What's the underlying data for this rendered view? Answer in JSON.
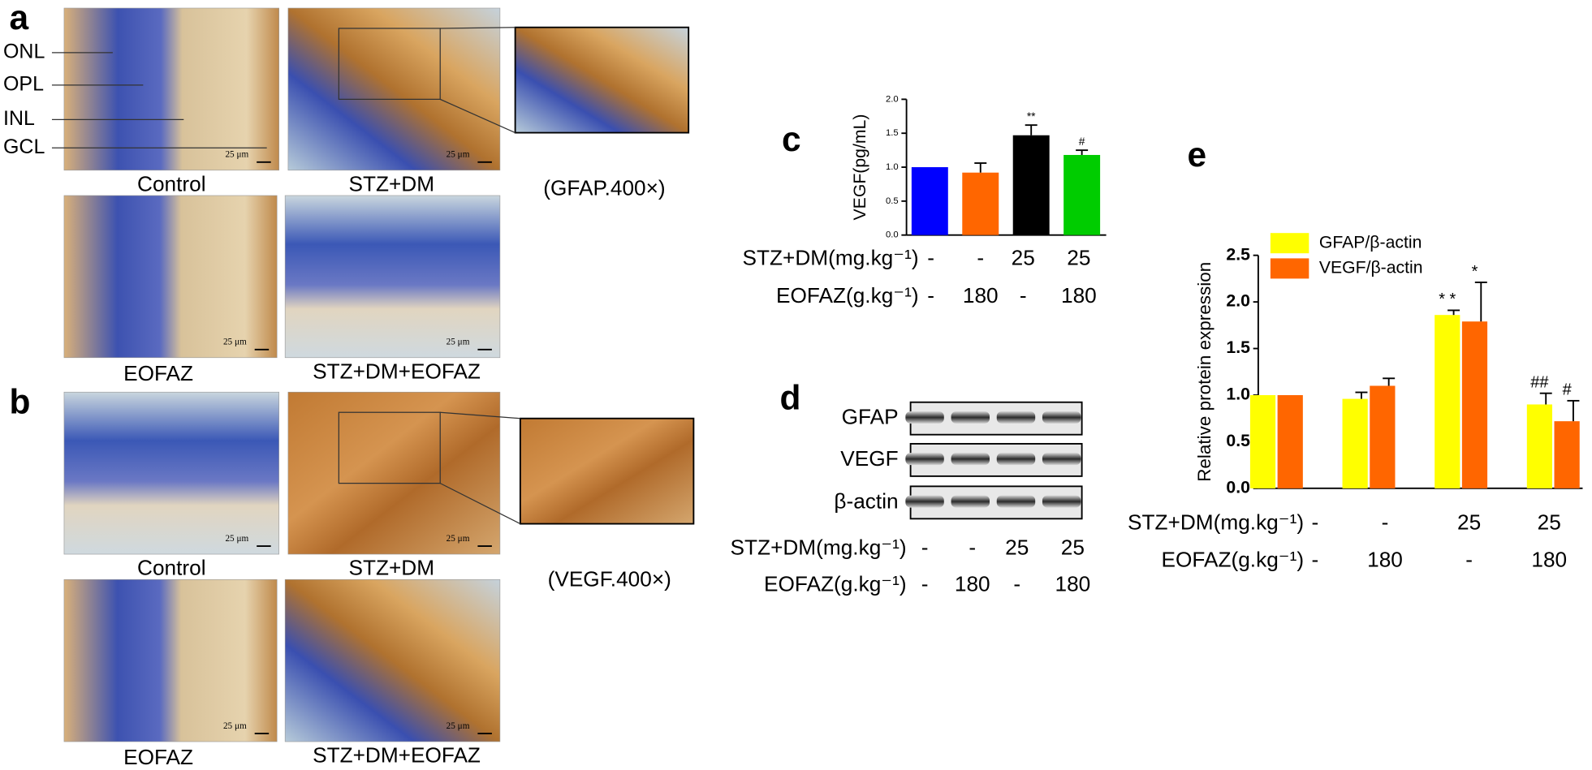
{
  "panel_a": {
    "label": "a",
    "layers": [
      "ONL",
      "OPL",
      "INL",
      "GCL"
    ],
    "captions": [
      "Control",
      "STZ+DM",
      "EOFAZ",
      "STZ+DM+EOFAZ"
    ],
    "magnification": "(GFAP.400×)",
    "scale_bar": "25 μm"
  },
  "panel_b": {
    "label": "b",
    "captions": [
      "Control",
      "STZ+DM",
      "EOFAZ",
      "STZ+DM+EOFAZ"
    ],
    "magnification": "(VEGF.400×)",
    "scale_bar": "25 μm"
  },
  "panel_d": {
    "label": "d",
    "bands": [
      "GFAP",
      "VEGF",
      "β-actin"
    ],
    "treatments": [
      {
        "label": "STZ+DM(mg.kg⁻¹)",
        "values": [
          "-",
          "-",
          "25",
          "25"
        ]
      },
      {
        "label": "EOFAZ(g.kg⁻¹)",
        "values": [
          "-",
          "180",
          "-",
          "180"
        ]
      }
    ]
  },
  "chart_data": [
    {
      "type": "bar",
      "panel_label": "c",
      "y_label": "VEGF(pg/mL)",
      "categories": [
        null,
        null,
        null,
        null
      ],
      "values": [
        1.0,
        0.92,
        1.47,
        1.18
      ],
      "errors": [
        0,
        0.14,
        0.15,
        0.07
      ],
      "annotations": [
        null,
        null,
        "**",
        "#"
      ],
      "colors": [
        "#0000ff",
        "#ff6600",
        "#000000",
        "#00cc00"
      ],
      "ylim": [
        0,
        2.0
      ],
      "yticks": [
        {
          "value": 0,
          "label": "0.0"
        },
        {
          "value": 0.5,
          "label": "0.5"
        },
        {
          "value": 1.0,
          "label": "1.0"
        },
        {
          "value": 1.5,
          "label": "1.5"
        },
        {
          "value": 2.0,
          "label": "2.0"
        }
      ],
      "treatments": [
        {
          "label": "STZ+DM(mg.kg⁻¹)",
          "values": [
            "-",
            "-",
            "25",
            "25"
          ]
        },
        {
          "label": "EOFAZ(g.kg⁻¹)",
          "values": [
            "-",
            "180",
            "-",
            "180"
          ]
        }
      ]
    },
    {
      "type": "grouped_bar",
      "panel_label": "e",
      "y_label": "Relative protein expression",
      "categories": [
        null,
        null,
        null,
        null
      ],
      "series": [
        {
          "name": "GFAP/β-actin",
          "color": "#ffff00",
          "values": [
            1.0,
            0.96,
            1.86,
            0.9
          ],
          "errors": [
            0,
            0.07,
            0.05,
            0.12
          ],
          "annotations": [
            null,
            null,
            "* *",
            "##"
          ]
        },
        {
          "name": "VEGF/β-actin",
          "color": "#ff6600",
          "values": [
            1.0,
            1.1,
            1.79,
            0.72
          ],
          "errors": [
            0,
            0.08,
            0.42,
            0.22
          ],
          "annotations": [
            null,
            null,
            "*",
            "#"
          ]
        }
      ],
      "legend": "upper left",
      "ylim": [
        0,
        2.5
      ],
      "yticks": [
        {
          "value": 0,
          "label": "0.0"
        },
        {
          "value": 0.5,
          "label": "0.5"
        },
        {
          "value": 1.0,
          "label": "1.0"
        },
        {
          "value": 1.5,
          "label": "1.5"
        },
        {
          "value": 2.0,
          "label": "2.0"
        },
        {
          "value": 2.5,
          "label": "2.5"
        }
      ],
      "treatments": [
        {
          "label": "STZ+DM(mg.kg⁻¹)",
          "values": [
            "-",
            "-",
            "25",
            "25"
          ]
        },
        {
          "label": "EOFAZ(g.kg⁻¹)",
          "values": [
            "-",
            "180",
            "-",
            "180"
          ]
        }
      ]
    }
  ]
}
